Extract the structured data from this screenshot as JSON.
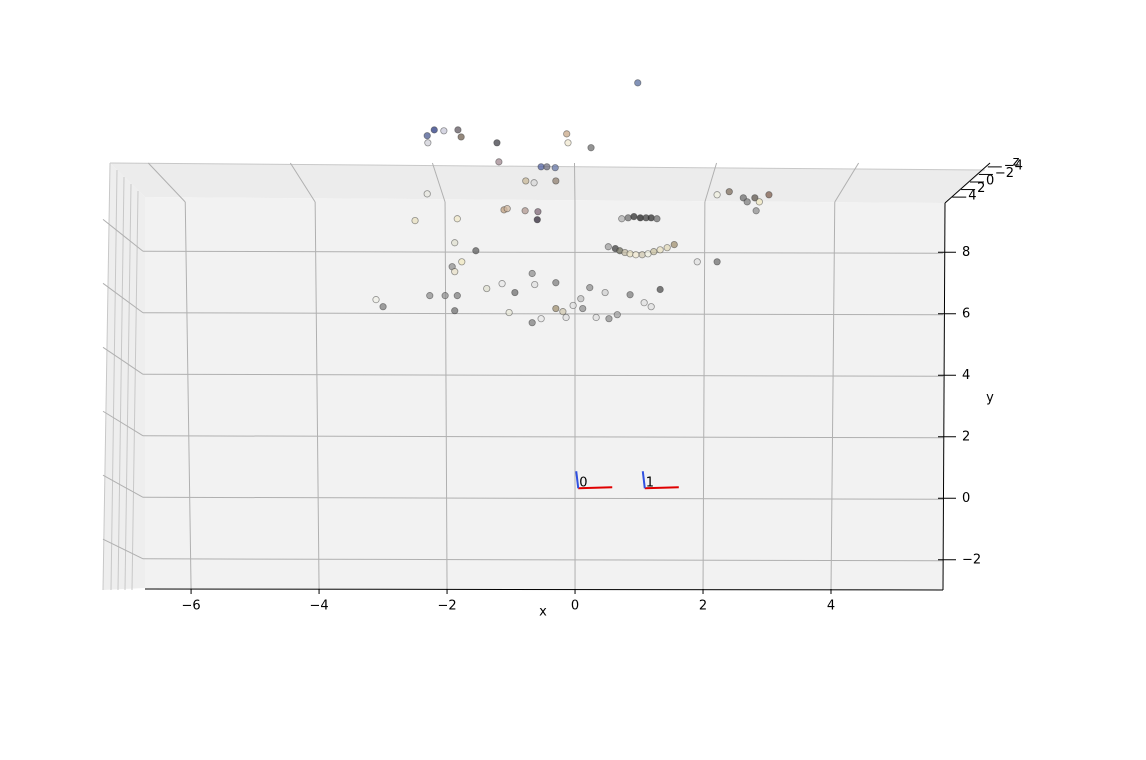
{
  "chart_data": {
    "type": "scatter3d",
    "xlabel": "x",
    "ylabel": "y",
    "zlabel": "z",
    "xlim": [
      -6.72,
      5.75
    ],
    "ylim": [
      -2.95,
      9.7
    ],
    "zlim": [
      -4.5,
      4.5
    ],
    "xticks": [
      {
        "value": -6,
        "label": "−6"
      },
      {
        "value": -4,
        "label": "−4"
      },
      {
        "value": -2,
        "label": "−2"
      },
      0,
      2,
      4
    ],
    "yticks": [
      {
        "value": -2,
        "label": "−2"
      },
      0,
      2,
      4,
      6,
      8
    ],
    "zticks": [
      {
        "value": -4,
        "label": "−4"
      },
      {
        "value": -2,
        "label": "−2"
      },
      0,
      2,
      4
    ],
    "grid": true,
    "series": [
      {
        "x": [
          0.98,
          -2.31,
          -2.2,
          -2.05,
          -1.83,
          -1.78,
          -2.3,
          -1.22,
          -0.13,
          -0.11,
          0.25,
          -1.19,
          -0.53,
          -0.44,
          -0.31,
          -0.77,
          -0.64,
          -0.3,
          -2.31,
          -2.5,
          -1.84,
          -1.11,
          -1.06,
          -0.78,
          -0.58,
          -0.59,
          2.41,
          2.63,
          2.69,
          2.81,
          2.88,
          3.03,
          2.83,
          2.22,
          0.73,
          0.83,
          0.92,
          1.02,
          1.11,
          1.19,
          1.28,
          0.52,
          0.63,
          0.7,
          0.78,
          0.86,
          0.95,
          1.05,
          1.14,
          1.23,
          1.33,
          1.44,
          1.55,
          -1.88,
          -1.55,
          -1.92,
          -1.77,
          -1.88,
          -0.67,
          -0.3,
          0.23,
          1.91,
          2.22,
          1.33,
          -2.27,
          -2.03,
          -1.84,
          -3.0,
          -3.11,
          -1.38,
          -0.94,
          -1.88,
          0.09,
          0.47,
          0.86,
          1.08,
          -0.3,
          -0.19,
          -0.03,
          0.12,
          -0.67,
          -1.03,
          -0.53,
          -0.14,
          0.53,
          0.66,
          0.33,
          1.19,
          -0.63,
          -1.14
        ],
        "y": [
          13.51,
          11.79,
          11.98,
          11.95,
          11.98,
          11.75,
          11.56,
          11.56,
          11.85,
          11.56,
          11.4,
          10.94,
          10.78,
          10.78,
          10.75,
          10.32,
          10.26,
          10.32,
          9.9,
          9.03,
          9.09,
          9.38,
          9.42,
          9.35,
          9.32,
          9.06,
          9.97,
          9.77,
          9.64,
          9.77,
          9.64,
          9.87,
          9.35,
          9.87,
          9.09,
          9.12,
          9.16,
          9.12,
          9.12,
          9.12,
          9.09,
          8.18,
          8.12,
          8.05,
          7.99,
          7.95,
          7.92,
          7.92,
          7.95,
          8.02,
          8.08,
          8.15,
          8.25,
          8.31,
          8.05,
          7.53,
          7.69,
          7.37,
          7.31,
          7.01,
          6.85,
          7.69,
          7.69,
          6.79,
          6.59,
          6.59,
          6.59,
          6.23,
          6.46,
          6.82,
          6.69,
          6.1,
          6.49,
          6.69,
          6.62,
          6.36,
          6.17,
          6.07,
          6.27,
          6.17,
          5.71,
          6.04,
          5.84,
          5.88,
          5.84,
          5.97,
          5.88,
          6.23,
          6.95,
          6.98
        ],
        "colors": [
          "#5a6fa0",
          "#4a5a90",
          "#2a3a80",
          "#c8c8d8",
          "#605860",
          "#706050",
          "#d0d0d8",
          "#404048",
          "#c8a888",
          "#f0e8d0",
          "#707070",
          "#a08890",
          "#5060a0",
          "#707080",
          "#6878a8",
          "#c8b898",
          "#d8d8d8",
          "#908070",
          "#e8e8e0",
          "#e8e0c0",
          "#f0e8c8",
          "#c0a080",
          "#d0b8a0",
          "#b09890",
          "#806878",
          "#302838",
          "#807060",
          "#707070",
          "#808080",
          "#605850",
          "#f0e8c0",
          "#806050",
          "#909090",
          "#f0f0e0",
          "#b0b0b0",
          "#707070",
          "#303030",
          "#202020",
          "#404040",
          "#303030",
          "#707070",
          "#a0a0a0",
          "#404040",
          "#707060",
          "#c0b8a0",
          "#e8e0c0",
          "#f0e8d0",
          "#d0c8b0",
          "#f0f0e0",
          "#c8c0a0",
          "#e8e0c0",
          "#e0d8b8",
          "#a09070",
          "#e0e0d0",
          "#606060",
          "#909090",
          "#f0e8c0",
          "#e8e0c8",
          "#909090",
          "#808080",
          "#909090",
          "#e0e0e0",
          "#707070",
          "#505050",
          "#909090",
          "#909090",
          "#808080",
          "#808080",
          "#f0f0e8",
          "#e0e0d0",
          "#707070",
          "#707070",
          "#c0c0c0",
          "#d0d0d0",
          "#808080",
          "#e0e0e0",
          "#a09070",
          "#d0c8b0",
          "#e0e0e0",
          "#909090",
          "#808080",
          "#e8e8d8",
          "#e8e8e8",
          "#e0e0e0",
          "#909090",
          "#a0a0a0",
          "#e0e0e0",
          "#e0e0e0",
          "#e0e0e0",
          "#e8e8e8"
        ]
      }
    ],
    "cameras": [
      {
        "label": "0",
        "x": 0.05,
        "y": 0.36
      },
      {
        "label": "1",
        "x": 1.09,
        "y": 0.36
      }
    ]
  }
}
